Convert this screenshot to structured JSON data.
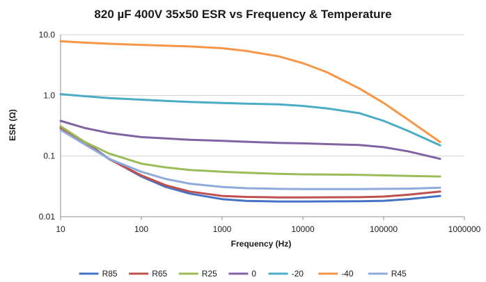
{
  "chart_data": {
    "type": "line",
    "title": "820 µF 400V 35x50 ESR vs Frequency & Temperature",
    "xlabel": "Frequency (Hz)",
    "ylabel": "ESR (Ω)",
    "x_scale": "log",
    "y_scale": "log",
    "xlim": [
      10,
      1000000
    ],
    "ylim": [
      0.01,
      10
    ],
    "x_ticks": [
      "10",
      "100",
      "1000",
      "10000",
      "100000",
      "1000000"
    ],
    "y_ticks": [
      "0.01",
      "0.1",
      "1.0",
      "10.0"
    ],
    "grid": "horizontal",
    "legend_position": "bottom",
    "series": [
      {
        "name": "R85",
        "color": "#4472C4",
        "points": [
          [
            10,
            0.3
          ],
          [
            20,
            0.17
          ],
          [
            40,
            0.09
          ],
          [
            100,
            0.046
          ],
          [
            200,
            0.031
          ],
          [
            400,
            0.024
          ],
          [
            1000,
            0.0195
          ],
          [
            2000,
            0.0182
          ],
          [
            5000,
            0.0178
          ],
          [
            10000,
            0.0178
          ],
          [
            50000,
            0.018
          ],
          [
            100000,
            0.0183
          ],
          [
            200000,
            0.0195
          ],
          [
            500000,
            0.022
          ]
        ]
      },
      {
        "name": "R65",
        "color": "#C0504D",
        "points": [
          [
            10,
            0.29
          ],
          [
            20,
            0.165
          ],
          [
            40,
            0.089
          ],
          [
            100,
            0.048
          ],
          [
            200,
            0.033
          ],
          [
            400,
            0.026
          ],
          [
            1000,
            0.022
          ],
          [
            2000,
            0.0212
          ],
          [
            5000,
            0.0208
          ],
          [
            10000,
            0.0208
          ],
          [
            50000,
            0.021
          ],
          [
            100000,
            0.0215
          ],
          [
            200000,
            0.023
          ],
          [
            500000,
            0.026
          ]
        ]
      },
      {
        "name": "R25",
        "color": "#9BBB59",
        "points": [
          [
            10,
            0.31
          ],
          [
            20,
            0.17
          ],
          [
            40,
            0.11
          ],
          [
            100,
            0.075
          ],
          [
            200,
            0.065
          ],
          [
            400,
            0.059
          ],
          [
            1000,
            0.055
          ],
          [
            2000,
            0.053
          ],
          [
            5000,
            0.051
          ],
          [
            10000,
            0.05
          ],
          [
            50000,
            0.049
          ],
          [
            100000,
            0.048
          ],
          [
            200000,
            0.047
          ],
          [
            500000,
            0.046
          ]
        ]
      },
      {
        "name": "0",
        "color": "#8064A2",
        "points": [
          [
            10,
            0.38
          ],
          [
            20,
            0.29
          ],
          [
            40,
            0.24
          ],
          [
            100,
            0.205
          ],
          [
            200,
            0.195
          ],
          [
            400,
            0.185
          ],
          [
            1000,
            0.178
          ],
          [
            2000,
            0.172
          ],
          [
            5000,
            0.165
          ],
          [
            10000,
            0.162
          ],
          [
            50000,
            0.152
          ],
          [
            100000,
            0.14
          ],
          [
            200000,
            0.12
          ],
          [
            500000,
            0.09
          ]
        ]
      },
      {
        "name": "-20",
        "color": "#4BACC6",
        "points": [
          [
            10,
            1.05
          ],
          [
            20,
            0.97
          ],
          [
            40,
            0.9
          ],
          [
            100,
            0.85
          ],
          [
            200,
            0.81
          ],
          [
            400,
            0.78
          ],
          [
            1000,
            0.75
          ],
          [
            2000,
            0.73
          ],
          [
            5000,
            0.71
          ],
          [
            10000,
            0.67
          ],
          [
            20000,
            0.61
          ],
          [
            50000,
            0.51
          ],
          [
            100000,
            0.38
          ],
          [
            200000,
            0.26
          ],
          [
            500000,
            0.15
          ]
        ]
      },
      {
        "name": "-40",
        "color": "#F79646",
        "points": [
          [
            10,
            7.8
          ],
          [
            20,
            7.4
          ],
          [
            40,
            7.1
          ],
          [
            100,
            6.8
          ],
          [
            200,
            6.6
          ],
          [
            400,
            6.4
          ],
          [
            1000,
            6.0
          ],
          [
            2000,
            5.4
          ],
          [
            5000,
            4.4
          ],
          [
            10000,
            3.4
          ],
          [
            20000,
            2.4
          ],
          [
            50000,
            1.3
          ],
          [
            100000,
            0.75
          ],
          [
            200000,
            0.4
          ],
          [
            500000,
            0.17
          ]
        ]
      },
      {
        "name": "R45",
        "color": "#8EA9DB",
        "points": [
          [
            10,
            0.27
          ],
          [
            20,
            0.155
          ],
          [
            40,
            0.09
          ],
          [
            100,
            0.055
          ],
          [
            200,
            0.042
          ],
          [
            400,
            0.035
          ],
          [
            1000,
            0.031
          ],
          [
            2000,
            0.0295
          ],
          [
            5000,
            0.0288
          ],
          [
            10000,
            0.0285
          ],
          [
            50000,
            0.0285
          ],
          [
            100000,
            0.0288
          ],
          [
            200000,
            0.029
          ],
          [
            500000,
            0.03
          ]
        ]
      }
    ]
  }
}
